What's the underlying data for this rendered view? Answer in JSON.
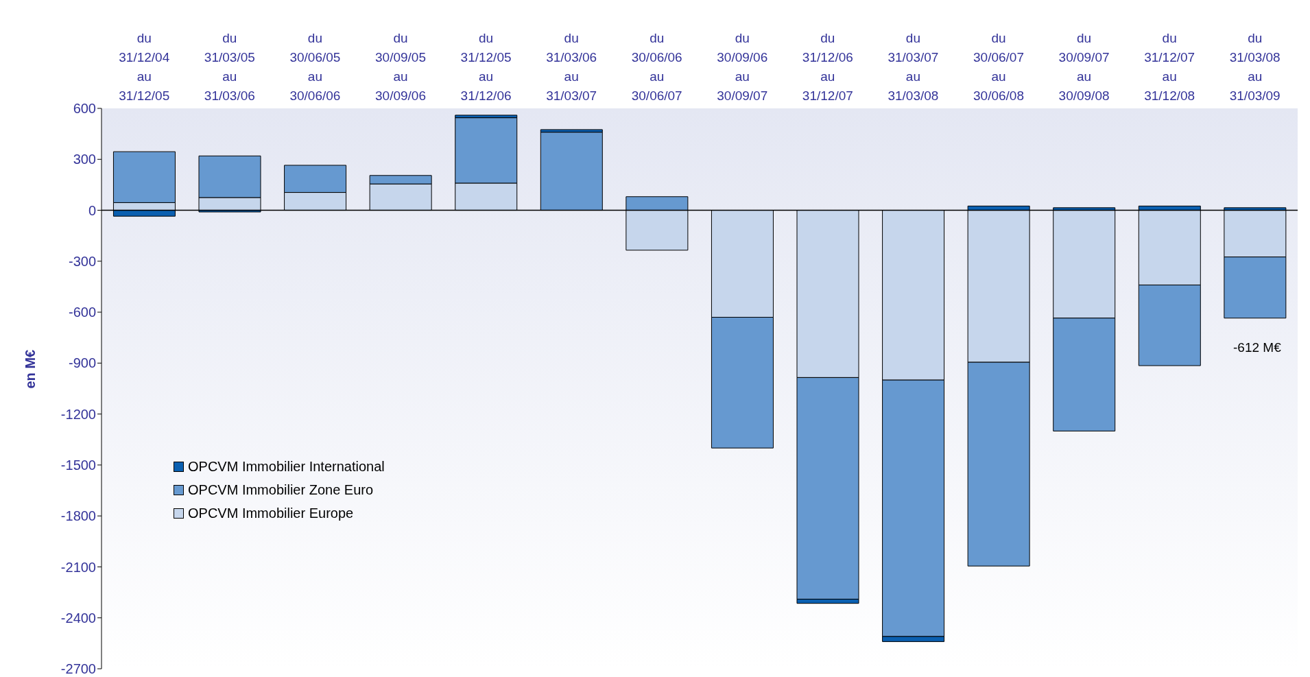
{
  "chart_data": {
    "type": "bar",
    "stacked": true,
    "ylabel": "en M€",
    "categories": [
      "du\n31/12/04\nau\n31/12/05",
      "du\n31/03/05\nau\n31/03/06",
      "du\n30/06/05\nau\n30/06/06",
      "du\n30/09/05\nau\n30/09/06",
      "du\n31/12/05\nau\n31/12/06",
      "du\n31/03/06\nau\n31/03/07",
      "du\n30/06/06\nau\n30/06/07",
      "du\n30/09/06\nau\n30/09/07",
      "du\n31/12/06\nau\n31/12/07",
      "du\n31/03/07\nau\n31/03/08",
      "du\n30/06/07\nau\n30/06/08",
      "du\n30/09/07\nau\n30/09/08",
      "du\n31/12/07\nau\n31/12/08",
      "du\n31/03/08\nau\n31/03/09"
    ],
    "series": [
      {
        "name": "OPCVM Immobilier Europe",
        "color": "#c6d6ec",
        "values": [
          45,
          75,
          105,
          155,
          160,
          0,
          -235,
          -630,
          -985,
          -1000,
          -895,
          -635,
          -440,
          -275
        ]
      },
      {
        "name": "OPCVM Immobilier Zone Euro",
        "color": "#6699d0",
        "values": [
          300,
          245,
          160,
          50,
          385,
          460,
          80,
          -770,
          -1305,
          -1510,
          -1200,
          -665,
          -475,
          -360
        ]
      },
      {
        "name": "OPCVM Immobilier International",
        "color": "#0a5fb0",
        "values": [
          -35,
          -10,
          0,
          0,
          15,
          15,
          0,
          0,
          -25,
          -30,
          25,
          15,
          25,
          15
        ]
      }
    ],
    "ylim": [
      -2700,
      600
    ],
    "yticks": [
      -2700,
      -2400,
      -2100,
      -1800,
      -1500,
      -1200,
      -900,
      -600,
      -300,
      0,
      300,
      600
    ],
    "legend": "left",
    "annotations": [
      "-612 M€"
    ]
  }
}
